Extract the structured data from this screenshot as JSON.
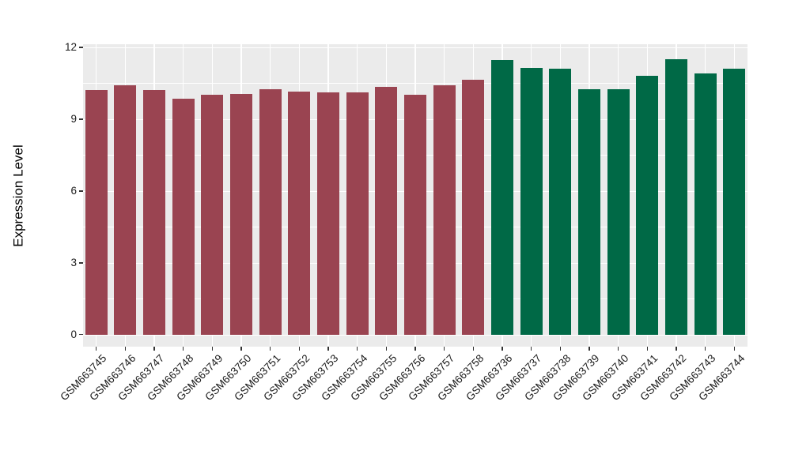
{
  "figure": {
    "background": "#FFFFFF",
    "panel_background": "#EBEBEB",
    "grid_color": "#FFFFFF",
    "tick_mark_color": "#333333",
    "axis_text_color": "#1A1A1A"
  },
  "chart_data": {
    "type": "bar",
    "title": "",
    "xlabel": "",
    "ylabel": "Expression Level",
    "ylim": [
      0,
      12
    ],
    "yticks": [
      0,
      3,
      6,
      9,
      12
    ],
    "yticks_minor": [
      1.5,
      4.5,
      7.5,
      10.5
    ],
    "grid": "on",
    "legend": "none",
    "categories": [
      "GSM663745",
      "GSM663746",
      "GSM663747",
      "GSM663748",
      "GSM663749",
      "GSM663750",
      "GSM663751",
      "GSM663752",
      "GSM663753",
      "GSM663754",
      "GSM663755",
      "GSM663756",
      "GSM663757",
      "GSM663758",
      "GSM663736",
      "GSM663737",
      "GSM663738",
      "GSM663739",
      "GSM663740",
      "GSM663741",
      "GSM663742",
      "GSM663743",
      "GSM663744"
    ],
    "values": [
      10.2,
      10.4,
      10.2,
      9.85,
      10.0,
      10.05,
      10.25,
      10.15,
      10.1,
      10.1,
      10.35,
      10.0,
      10.4,
      10.65,
      11.45,
      11.15,
      11.1,
      10.25,
      10.25,
      10.8,
      11.5,
      10.9,
      11.1
    ],
    "colors": [
      "#9A4451",
      "#9A4451",
      "#9A4451",
      "#9A4451",
      "#9A4451",
      "#9A4451",
      "#9A4451",
      "#9A4451",
      "#9A4451",
      "#9A4451",
      "#9A4451",
      "#9A4451",
      "#9A4451",
      "#9A4451",
      "#006946",
      "#006946",
      "#006946",
      "#006946",
      "#006946",
      "#006946",
      "#006946",
      "#006946",
      "#006946"
    ],
    "group_colors": {
      "maroon": "#9A4451",
      "green": "#006946"
    }
  }
}
